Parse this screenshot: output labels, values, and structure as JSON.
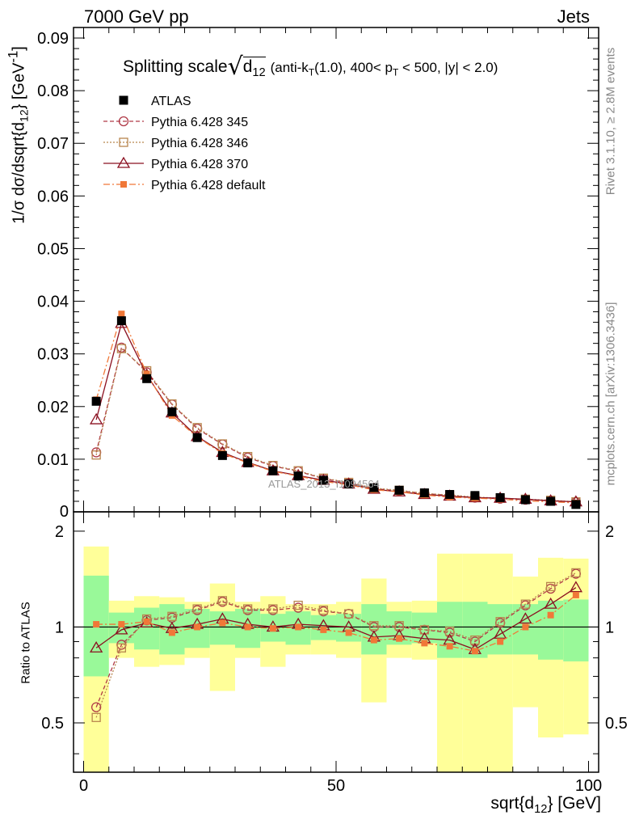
{
  "header": {
    "left": "7000 GeV pp",
    "right": "Jets"
  },
  "title": {
    "main": "Splitting scale",
    "var_base": "d",
    "var_sub": "12",
    "cuts_pre": "(anti-k",
    "cuts_k_sub": "T",
    "cuts_mid": "(1.0), 400< p",
    "cuts_p_sub": "T",
    "cuts_post": " < 500, |y| < 2.0)"
  },
  "side_text": {
    "rivet": "Rivet 3.1.10, ≥ 2.8M events",
    "mcplots": "mcplots.cern.ch [arXiv:1306.3436]"
  },
  "watermark": "ATLAS_2013_I1094564",
  "axes": {
    "ylabel_top": "1/σ dσ/dsqrt{d",
    "ylabel_top_sub": "12",
    "ylabel_top_post": "} [GeV",
    "ylabel_top_sup": "-1",
    "ylabel_top_end": "]",
    "ylabel_bottom": "Ratio to ATLAS",
    "xlabel_pre": "sqrt{d",
    "xlabel_sub": "12",
    "xlabel_post": "} [GeV]"
  },
  "colors": {
    "atlas": "#000000",
    "p345": "#b03a48",
    "p346": "#b8864e",
    "p370": "#8b1020",
    "pdefault": "#f07838",
    "band_inner": "#99f999",
    "band_outer": "#ffff99"
  },
  "chart_data": {
    "type": "scatter",
    "x": [
      2.5,
      7.5,
      12.5,
      17.5,
      22.5,
      27.5,
      32.5,
      37.5,
      42.5,
      47.5,
      52.5,
      57.5,
      62.5,
      67.5,
      72.5,
      77.5,
      82.5,
      87.5,
      92.5,
      97.5
    ],
    "xlim": [
      -2,
      102
    ],
    "ylim_top": [
      0,
      0.092
    ],
    "ylim_ratio": [
      0.35,
      2.3
    ],
    "xticks": [
      "0",
      "50",
      "100"
    ],
    "yticks_top": [
      "0.01",
      "0.02",
      "0.03",
      "0.04",
      "0.05",
      "0.06",
      "0.07",
      "0.08",
      "0.09"
    ],
    "yticks_top_zero": "0",
    "yticks_ratio": [
      "0.5",
      "1",
      "2"
    ],
    "series": [
      {
        "name": "ATLAS",
        "style": "data",
        "values": [
          0.021,
          0.0363,
          0.0253,
          0.019,
          0.0141,
          0.0107,
          0.0093,
          0.0078,
          0.0068,
          0.006,
          0.0053,
          0.0046,
          0.0041,
          0.0036,
          0.0033,
          0.0031,
          0.0027,
          0.0023,
          0.002,
          0.0014
        ],
        "ratio": [
          1,
          1,
          1,
          1,
          1,
          1,
          1,
          1,
          1,
          1,
          1,
          1,
          1,
          1,
          1,
          1,
          1,
          1,
          1,
          1
        ]
      },
      {
        "name": "Pythia 6.428 345",
        "style": "circle",
        "values": [
          0.0113,
          0.0312,
          0.0265,
          0.0204,
          0.0158,
          0.0128,
          0.0103,
          0.0087,
          0.0077,
          0.0063,
          0.0055,
          0.0044,
          0.004,
          0.0035,
          0.0031,
          0.0027,
          0.0025,
          0.0023,
          0.0021,
          0.0019
        ],
        "ratio": [
          0.56,
          0.88,
          1.05,
          1.07,
          1.13,
          1.2,
          1.13,
          1.13,
          1.15,
          1.12,
          1.1,
          1.0,
          1.0,
          0.98,
          0.96,
          0.9,
          1.03,
          1.17,
          1.32,
          1.47
        ]
      },
      {
        "name": "Pythia 6.428 346",
        "style": "square",
        "values": [
          0.0108,
          0.031,
          0.0268,
          0.0205,
          0.016,
          0.0129,
          0.0105,
          0.0088,
          0.0078,
          0.0064,
          0.0056,
          0.0045,
          0.0041,
          0.0035,
          0.0032,
          0.0028,
          0.0026,
          0.0024,
          0.0022,
          0.0019
        ],
        "ratio": [
          0.52,
          0.86,
          1.06,
          1.08,
          1.14,
          1.21,
          1.14,
          1.14,
          1.17,
          1.13,
          1.1,
          1.01,
          1.01,
          0.98,
          0.97,
          0.91,
          1.04,
          1.18,
          1.34,
          1.48
        ]
      },
      {
        "name": "Pythia 6.428 370",
        "style": "triangle",
        "values": [
          0.0175,
          0.0358,
          0.026,
          0.0188,
          0.0143,
          0.0113,
          0.0094,
          0.0078,
          0.0069,
          0.006,
          0.0053,
          0.0043,
          0.0038,
          0.0033,
          0.003,
          0.0027,
          0.0026,
          0.0024,
          0.0021,
          0.0019
        ],
        "ratio": [
          0.86,
          0.98,
          1.03,
          0.99,
          1.02,
          1.06,
          1.02,
          1.0,
          1.02,
          1.01,
          1.0,
          0.93,
          0.94,
          0.92,
          0.91,
          0.85,
          0.95,
          1.06,
          1.18,
          1.33
        ]
      },
      {
        "name": "Pythia 6.428 default",
        "style": "filledsquare",
        "values": [
          0.0213,
          0.0376,
          0.0262,
          0.0183,
          0.0142,
          0.0111,
          0.0093,
          0.0077,
          0.0068,
          0.0058,
          0.0051,
          0.0042,
          0.0038,
          0.0032,
          0.0028,
          0.0026,
          0.0024,
          0.0021,
          0.0019,
          0.0017
        ],
        "ratio": [
          1.02,
          1.02,
          1.04,
          0.96,
          1.0,
          1.03,
          1.0,
          0.99,
          1.0,
          0.98,
          0.96,
          0.91,
          0.92,
          0.89,
          0.87,
          0.84,
          0.9,
          1.0,
          1.09,
          1.26
        ]
      }
    ],
    "band_inner": {
      "lo": [
        0.7,
        0.89,
        0.85,
        0.82,
        0.86,
        0.88,
        0.86,
        0.9,
        0.88,
        0.91,
        0.9,
        0.82,
        0.88,
        0.89,
        0.8,
        0.8,
        0.82,
        0.82,
        0.79,
        0.78
      ],
      "hi": [
        1.45,
        1.11,
        1.15,
        1.18,
        1.14,
        1.12,
        1.14,
        1.1,
        1.12,
        1.09,
        1.1,
        1.18,
        1.12,
        1.11,
        1.2,
        1.2,
        1.18,
        1.18,
        1.21,
        1.22
      ]
    },
    "band_outer": {
      "lo": [
        0.3,
        0.8,
        0.75,
        0.76,
        0.8,
        0.63,
        0.8,
        0.75,
        0.82,
        0.82,
        0.8,
        0.58,
        0.8,
        0.79,
        0.3,
        0.3,
        0.3,
        0.56,
        0.45,
        0.46
      ],
      "hi": [
        1.79,
        1.21,
        1.25,
        1.24,
        1.2,
        1.37,
        1.2,
        1.25,
        1.18,
        1.18,
        1.2,
        1.42,
        1.2,
        1.21,
        1.7,
        1.7,
        1.7,
        1.44,
        1.65,
        1.64
      ]
    }
  }
}
